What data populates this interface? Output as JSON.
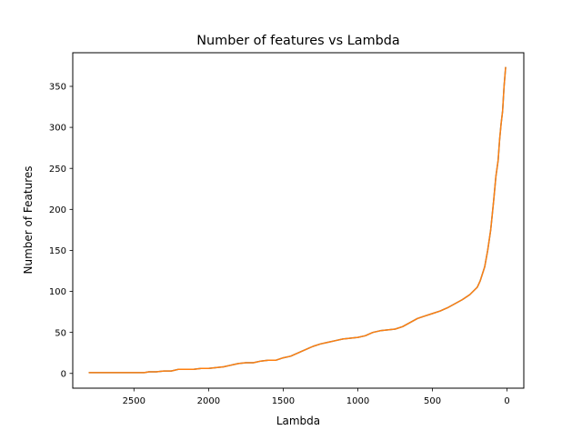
{
  "chart_data": {
    "type": "line",
    "title": "Number of features vs Lambda",
    "xlabel": "Lambda",
    "ylabel": "Number of Features",
    "xlim": [
      2910,
      -112
    ],
    "ylim": [
      -18,
      391
    ],
    "x_reversed": true,
    "grid": false,
    "xticks": [
      2500,
      2000,
      1500,
      1000,
      500,
      0
    ],
    "xtick_labels": [
      "2500",
      "2000",
      "1500",
      "1000",
      "500",
      "0"
    ],
    "yticks": [
      0,
      50,
      100,
      150,
      200,
      250,
      300,
      350
    ],
    "ytick_labels": [
      "0",
      "50",
      "100",
      "150",
      "200",
      "250",
      "300",
      "350"
    ],
    "series": [
      {
        "color": "#1f77b4",
        "x": [
          2800,
          2600,
          2430,
          2400,
          2350,
          2300,
          2250,
          2200,
          2150,
          2100,
          2050,
          2000,
          1950,
          1900,
          1850,
          1800,
          1750,
          1700,
          1650,
          1600,
          1550,
          1500,
          1450,
          1400,
          1350,
          1300,
          1250,
          1200,
          1150,
          1100,
          1050,
          1000,
          950,
          900,
          850,
          800,
          750,
          700,
          650,
          600,
          550,
          500,
          450,
          400,
          350,
          300,
          250,
          200,
          180,
          150,
          130,
          110,
          90,
          75,
          60,
          50,
          40,
          30,
          20,
          10
        ],
        "y": [
          1,
          1,
          1,
          2,
          2,
          3,
          3,
          5,
          5,
          5,
          6,
          6,
          7,
          8,
          10,
          12,
          13,
          13,
          15,
          16,
          16,
          19,
          21,
          25,
          29,
          33,
          36,
          38,
          40,
          42,
          43,
          44,
          46,
          50,
          52,
          53,
          54,
          57,
          62,
          67,
          70,
          73,
          76,
          80,
          85,
          90,
          96,
          105,
          113,
          130,
          150,
          175,
          210,
          240,
          260,
          285,
          305,
          320,
          350,
          373
        ]
      },
      {
        "color": "#ff7f0e",
        "x": [
          2800,
          2600,
          2430,
          2400,
          2350,
          2300,
          2250,
          2200,
          2150,
          2100,
          2050,
          2000,
          1950,
          1900,
          1850,
          1800,
          1750,
          1700,
          1650,
          1600,
          1550,
          1500,
          1450,
          1400,
          1350,
          1300,
          1250,
          1200,
          1150,
          1100,
          1050,
          1000,
          950,
          900,
          850,
          800,
          750,
          700,
          650,
          600,
          550,
          500,
          450,
          400,
          350,
          300,
          250,
          200,
          180,
          150,
          130,
          110,
          90,
          75,
          60,
          50,
          40,
          30,
          20,
          10
        ],
        "y": [
          1,
          1,
          1,
          2,
          2,
          3,
          3,
          5,
          5,
          5,
          6,
          6,
          7,
          8,
          10,
          12,
          13,
          13,
          15,
          16,
          16,
          19,
          21,
          25,
          29,
          33,
          36,
          38,
          40,
          42,
          43,
          44,
          46,
          50,
          52,
          53,
          54,
          57,
          62,
          67,
          70,
          73,
          76,
          80,
          85,
          90,
          96,
          105,
          113,
          130,
          150,
          175,
          210,
          240,
          260,
          285,
          305,
          320,
          350,
          373
        ]
      }
    ]
  }
}
